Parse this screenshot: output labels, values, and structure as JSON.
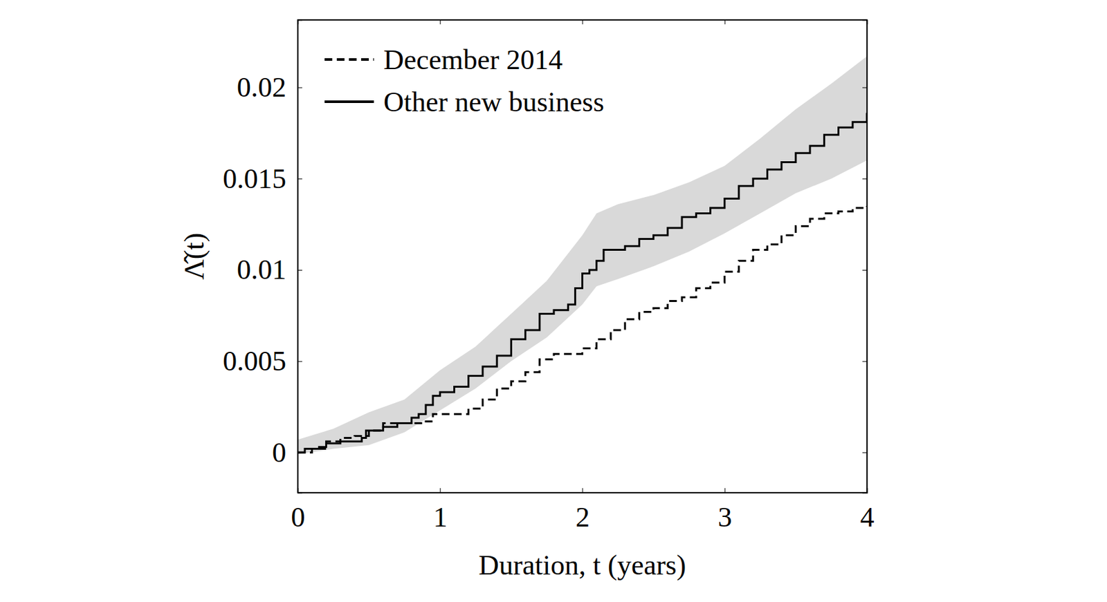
{
  "chart_data": {
    "type": "line",
    "x_label": "Duration, t (years)",
    "y_label": "Λ̂(t)",
    "xlim": [
      0,
      4
    ],
    "ylim": [
      -0.0022,
      0.0237
    ],
    "xticks": [
      0,
      1,
      2,
      3,
      4
    ],
    "yticks": [
      0,
      0.005,
      0.01,
      0.015,
      0.02
    ],
    "legend": "top-left",
    "series": [
      {
        "type": "band",
        "color": "#d9d9d9",
        "x": [
          0,
          0.25,
          0.5,
          0.75,
          1.0,
          1.25,
          1.5,
          1.75,
          2.0,
          2.1,
          2.25,
          2.5,
          2.75,
          3.0,
          3.25,
          3.5,
          3.75,
          4.0
        ],
        "lower": [
          -0.0001,
          0.0002,
          0.0004,
          0.0011,
          0.0023,
          0.0035,
          0.005,
          0.0063,
          0.0081,
          0.0091,
          0.0095,
          0.0102,
          0.011,
          0.012,
          0.0131,
          0.0142,
          0.015,
          0.016
        ],
        "upper": [
          0.0007,
          0.0013,
          0.0022,
          0.0029,
          0.0045,
          0.0058,
          0.0076,
          0.0094,
          0.0119,
          0.0131,
          0.0136,
          0.0141,
          0.0148,
          0.0157,
          0.0172,
          0.0188,
          0.0202,
          0.0217
        ]
      },
      {
        "name": "December 2014",
        "type": "step",
        "color": "#000000",
        "line_style": "dashed",
        "x": [
          0,
          0.1,
          0.2,
          0.3,
          0.4,
          0.5,
          0.6,
          0.9,
          0.95,
          1.2,
          1.3,
          1.4,
          1.5,
          1.6,
          1.7,
          1.8,
          2.0,
          2.1,
          2.2,
          2.3,
          2.4,
          2.5,
          2.6,
          2.7,
          2.8,
          2.9,
          3.0,
          3.1,
          3.2,
          3.3,
          3.4,
          3.5,
          3.6,
          3.7,
          3.8,
          3.9,
          4.0
        ],
        "values": [
          0,
          0.0002,
          0.0006,
          0.0008,
          0.0009,
          0.0012,
          0.0016,
          0.0017,
          0.0021,
          0.0024,
          0.0029,
          0.0035,
          0.0039,
          0.0044,
          0.0051,
          0.0054,
          0.0057,
          0.0062,
          0.0067,
          0.0073,
          0.0077,
          0.0079,
          0.0083,
          0.0085,
          0.009,
          0.0093,
          0.0099,
          0.0105,
          0.0111,
          0.0114,
          0.0119,
          0.0124,
          0.0128,
          0.0131,
          0.0132,
          0.0134,
          0.0135
        ]
      },
      {
        "name": "Other new business",
        "type": "step",
        "color": "#000000",
        "line_style": "solid",
        "x": [
          0,
          0.05,
          0.15,
          0.2,
          0.3,
          0.45,
          0.48,
          0.6,
          0.7,
          0.8,
          0.85,
          0.9,
          0.95,
          1.0,
          1.1,
          1.2,
          1.3,
          1.4,
          1.5,
          1.6,
          1.7,
          1.8,
          1.9,
          1.95,
          2.0,
          2.05,
          2.1,
          2.15,
          2.3,
          2.4,
          2.5,
          2.6,
          2.7,
          2.8,
          2.9,
          3.0,
          3.1,
          3.2,
          3.3,
          3.4,
          3.5,
          3.6,
          3.7,
          3.8,
          3.9,
          4.0
        ],
        "values": [
          0,
          0.0002,
          0.0003,
          0.0005,
          0.0006,
          0.0008,
          0.0012,
          0.0014,
          0.0016,
          0.0019,
          0.0021,
          0.0026,
          0.0031,
          0.0033,
          0.0036,
          0.0042,
          0.0047,
          0.0053,
          0.0062,
          0.0067,
          0.0076,
          0.0078,
          0.0081,
          0.009,
          0.0098,
          0.01,
          0.0105,
          0.0111,
          0.0113,
          0.0117,
          0.0119,
          0.0123,
          0.0129,
          0.0131,
          0.0134,
          0.0139,
          0.0146,
          0.015,
          0.0155,
          0.0159,
          0.0164,
          0.0168,
          0.0174,
          0.0178,
          0.0181,
          0.0186
        ]
      }
    ]
  }
}
